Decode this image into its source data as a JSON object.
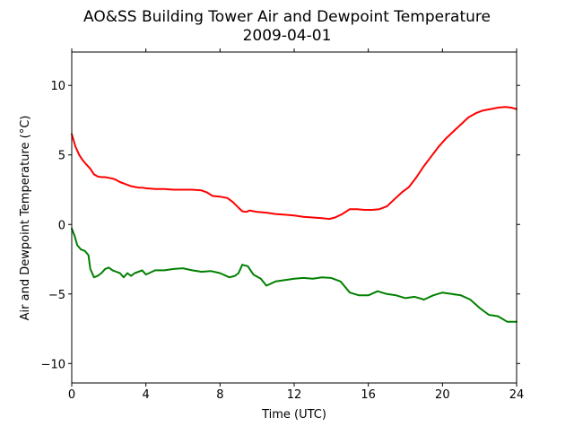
{
  "chart_data": {
    "type": "line",
    "title": "AO&SS Building Tower Air and Dewpoint Temperature",
    "subtitle": "2009-04-01",
    "xlabel": "Time (UTC)",
    "ylabel": "Air and Dewpoint Temperature (°C)",
    "xlim": [
      0,
      24
    ],
    "ylim": [
      -11.4,
      12.4
    ],
    "x_ticks": [
      0,
      4,
      8,
      12,
      16,
      20,
      24
    ],
    "x_tick_labels": [
      "0",
      "4",
      "8",
      "12",
      "16",
      "20",
      "24"
    ],
    "y_ticks": [
      -10,
      -5,
      0,
      5,
      10
    ],
    "y_tick_labels": [
      "−10",
      "−5",
      "0",
      "5",
      "10"
    ],
    "grid": false,
    "series": [
      {
        "color": "#ff0000",
        "x": [
          0,
          0.2,
          0.4,
          0.6,
          0.8,
          1.0,
          1.2,
          1.4,
          1.6,
          1.8,
          2.0,
          2.2,
          2.4,
          2.6,
          2.8,
          3.0,
          3.2,
          3.4,
          3.6,
          3.8,
          4.0,
          4.5,
          5.0,
          5.5,
          6.0,
          6.5,
          7.0,
          7.3,
          7.6,
          8.0,
          8.4,
          8.7,
          9.0,
          9.2,
          9.4,
          9.6,
          9.8,
          10.0,
          10.5,
          11.0,
          11.5,
          12.0,
          12.5,
          13.0,
          13.5,
          13.9,
          14.2,
          14.6,
          15.0,
          15.4,
          15.8,
          16.2,
          16.6,
          17.0,
          17.4,
          17.8,
          18.2,
          18.6,
          19.0,
          19.4,
          19.8,
          20.2,
          20.6,
          21.0,
          21.4,
          21.8,
          22.2,
          22.6,
          23.0,
          23.4,
          23.7,
          24.0
        ],
        "y": [
          6.5,
          5.6,
          5.0,
          4.6,
          4.3,
          4.0,
          3.6,
          3.45,
          3.4,
          3.4,
          3.35,
          3.3,
          3.2,
          3.05,
          2.95,
          2.85,
          2.75,
          2.7,
          2.65,
          2.65,
          2.6,
          2.55,
          2.55,
          2.5,
          2.5,
          2.5,
          2.45,
          2.3,
          2.05,
          2.0,
          1.9,
          1.6,
          1.2,
          0.95,
          0.9,
          1.0,
          0.95,
          0.9,
          0.85,
          0.75,
          0.7,
          0.65,
          0.55,
          0.5,
          0.45,
          0.4,
          0.5,
          0.75,
          1.1,
          1.1,
          1.05,
          1.05,
          1.1,
          1.3,
          1.8,
          2.3,
          2.7,
          3.4,
          4.2,
          4.9,
          5.6,
          6.2,
          6.7,
          7.2,
          7.7,
          8.0,
          8.2,
          8.3,
          8.4,
          8.45,
          8.4,
          8.3
        ]
      },
      {
        "color": "#008000",
        "x": [
          0,
          0.15,
          0.3,
          0.5,
          0.7,
          0.9,
          1.0,
          1.2,
          1.4,
          1.6,
          1.8,
          2.0,
          2.2,
          2.4,
          2.6,
          2.8,
          3.0,
          3.2,
          3.4,
          3.6,
          3.8,
          4.0,
          4.5,
          5.0,
          5.5,
          6.0,
          6.5,
          7.0,
          7.5,
          8.0,
          8.5,
          8.8,
          9.0,
          9.2,
          9.5,
          9.8,
          10.2,
          10.5,
          11.0,
          11.5,
          12.0,
          12.5,
          13.0,
          13.5,
          14.0,
          14.5,
          15.0,
          15.5,
          16.0,
          16.5,
          17.0,
          17.5,
          18.0,
          18.5,
          19.0,
          19.5,
          20.0,
          20.5,
          21.0,
          21.5,
          22.0,
          22.5,
          23.0,
          23.5,
          24.0
        ],
        "y": [
          -0.3,
          -0.8,
          -1.5,
          -1.8,
          -1.9,
          -2.2,
          -3.2,
          -3.8,
          -3.7,
          -3.5,
          -3.2,
          -3.1,
          -3.3,
          -3.4,
          -3.5,
          -3.8,
          -3.5,
          -3.7,
          -3.5,
          -3.4,
          -3.3,
          -3.6,
          -3.3,
          -3.3,
          -3.2,
          -3.15,
          -3.3,
          -3.4,
          -3.35,
          -3.5,
          -3.8,
          -3.7,
          -3.5,
          -2.9,
          -3.0,
          -3.6,
          -3.9,
          -4.4,
          -4.1,
          -4.0,
          -3.9,
          -3.85,
          -3.9,
          -3.8,
          -3.85,
          -4.1,
          -4.9,
          -5.1,
          -5.1,
          -4.8,
          -5.0,
          -5.1,
          -5.3,
          -5.2,
          -5.4,
          -5.1,
          -4.9,
          -5.0,
          -5.1,
          -5.4,
          -6.0,
          -6.5,
          -6.6,
          -7.0,
          -7.0
        ]
      }
    ]
  }
}
